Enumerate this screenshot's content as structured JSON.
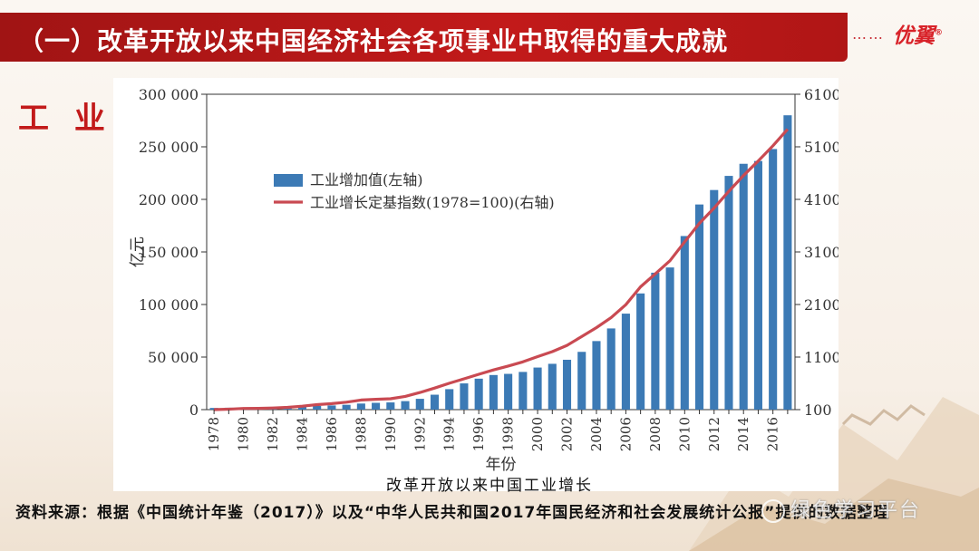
{
  "header": {
    "title": "（一）改革开放以来中国经济社会各项事业中取得的重大成就",
    "dots": "……",
    "logo": "优翼"
  },
  "section_label": "工 业",
  "chart_data": {
    "type": "bar+line",
    "title": "",
    "ylabel_left": "亿元",
    "xlabel": "年份",
    "ylim_left": [
      0,
      300000
    ],
    "ylim_right": [
      100,
      6100
    ],
    "left_ticks": [
      "300 000",
      "250 000",
      "200 000",
      "150 000",
      "100 000",
      "50 000",
      "0"
    ],
    "right_ticks": [
      "6100",
      "5100",
      "4100",
      "3100",
      "2100",
      "1100",
      "100"
    ],
    "x_tick_labels": [
      "1978",
      "1980",
      "1982",
      "1984",
      "1986",
      "1988",
      "1990",
      "1992",
      "1994",
      "1996",
      "1998",
      "2000",
      "2002",
      "2004",
      "2006",
      "2008",
      "2010",
      "2012",
      "2014",
      "2016"
    ],
    "years": [
      1978,
      1979,
      1980,
      1981,
      1982,
      1983,
      1984,
      1985,
      1986,
      1987,
      1988,
      1989,
      1990,
      1991,
      1992,
      1993,
      1994,
      1995,
      1996,
      1997,
      1998,
      1999,
      2000,
      2001,
      2002,
      2003,
      2004,
      2005,
      2006,
      2007,
      2008,
      2009,
      2010,
      2011,
      2012,
      2013,
      2014,
      2015,
      2016,
      2017
    ],
    "series": [
      {
        "name": "工业增加值(左轴)",
        "type": "bar",
        "axis": "left",
        "color": "#3c7ab5",
        "values": [
          1600,
          1800,
          2000,
          2050,
          2170,
          2380,
          2790,
          3450,
          3970,
          4590,
          5780,
          6480,
          6860,
          8090,
          10280,
          14190,
          19480,
          24950,
          29450,
          32920,
          34020,
          35860,
          40030,
          43580,
          47430,
          54950,
          65210,
          77230,
          91310,
          110530,
          130260,
          135240,
          165130,
          195140,
          208900,
          222340,
          233850,
          236510,
          247880,
          279997
        ]
      },
      {
        "name": "工业增长定基指数(1978=100)(右轴)",
        "type": "line",
        "axis": "right",
        "color": "#c94a52",
        "values": [
          100,
          109,
          122,
          124,
          131,
          143,
          165,
          195,
          213,
          241,
          283,
          297,
          307,
          352,
          425,
          510,
          602,
          686,
          773,
          856,
          930,
          1009,
          1108,
          1204,
          1323,
          1490,
          1660,
          1852,
          2097,
          2437,
          2683,
          2933,
          3293,
          3643,
          3937,
          4254,
          4554,
          4829,
          5120,
          5435
        ]
      }
    ],
    "legend_position": "upper-left"
  },
  "caption": "改革开放以来中国工业增长",
  "source_text": "资料来源：根据《中国统计年鉴（2017）》以及“中华人民共和国2017年国民经济和社会发展统计公报”提供的数据整理",
  "watermark": "绿色学习平台"
}
